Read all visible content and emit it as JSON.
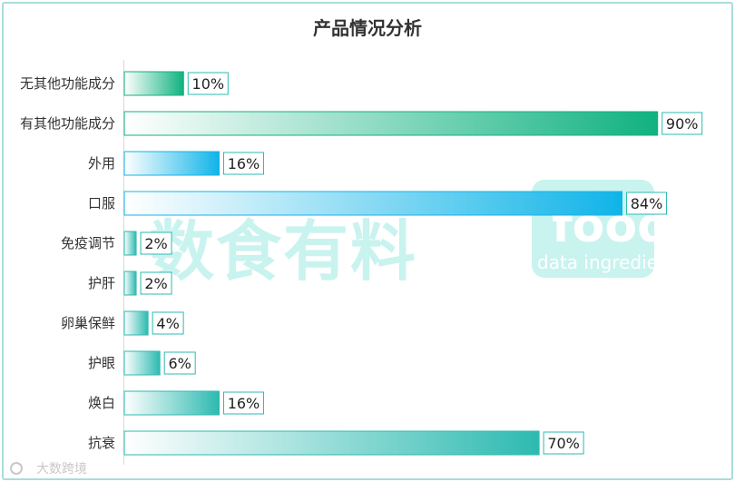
{
  "chart_data": {
    "type": "bar",
    "orientation": "horizontal",
    "title": "产品情况分析",
    "categories": [
      "无其他功能成分",
      "有其他功能成分",
      "外用",
      "口服",
      "免疫调节",
      "护肝",
      "卵巢保鲜",
      "护眼",
      "焕白",
      "抗衰"
    ],
    "values": [
      10,
      90,
      16,
      84,
      2,
      2,
      4,
      6,
      16,
      70
    ],
    "value_suffix": "%",
    "xlim": [
      0,
      100
    ],
    "grid": false,
    "legend": "none",
    "bar_colors": [
      "#10b27f",
      "#10b27f",
      "#10b4e8",
      "#10b4e8",
      "#2dbab0",
      "#2dbab0",
      "#2dbab0",
      "#2dbab0",
      "#2dbab0",
      "#2dbab0"
    ]
  },
  "watermark": {
    "text": "数食有料",
    "logo_text": "food",
    "logo_subtext": "data ingredient",
    "color": "#c9f3ef"
  },
  "source": {
    "logo_text": "大数跨境"
  }
}
